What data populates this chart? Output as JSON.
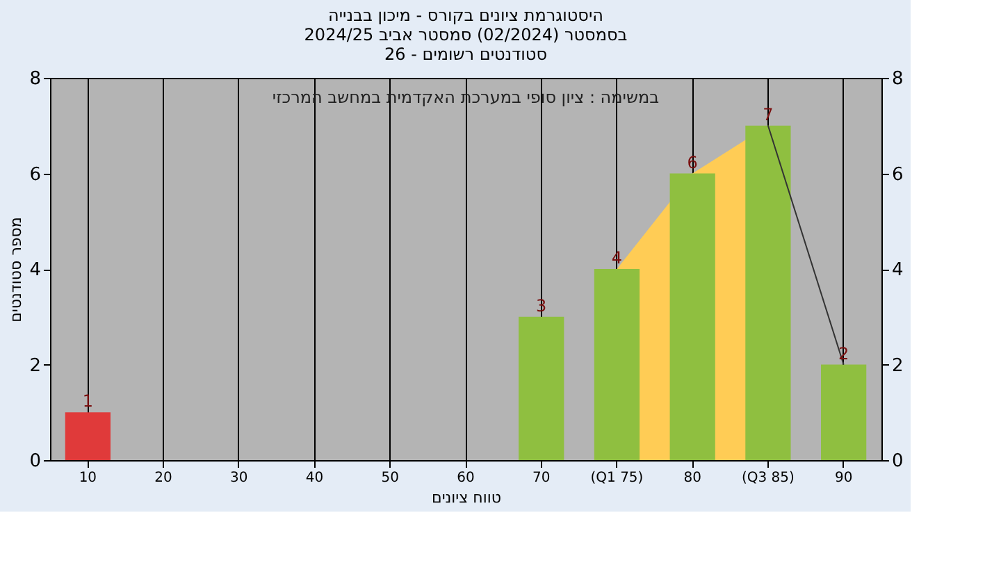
{
  "chart_data": {
    "type": "bar",
    "title": [
      "היסטוגרמת ציונים בקורס - מיכון בבנייה",
      "בסמסטר  (02/2024)  סמסטר אביב 2024/25",
      "סטודנטים רשומים - 26"
    ],
    "xlabel": "טווח ציונים",
    "ylabel": "מספר סטודנטים",
    "annotations": [
      "במשימה : ציון סופי במערכת האקדמית במחשב המרכזי"
    ],
    "categories": [
      "10",
      "20",
      "30",
      "40",
      "50",
      "60",
      "70",
      "(Q1 75)",
      "80",
      "(Q3 85)",
      "90"
    ],
    "series": [
      {
        "type": "area",
        "color": "#ffcc55",
        "values": [
          null,
          null,
          null,
          null,
          null,
          null,
          null,
          4,
          6,
          7,
          null
        ]
      },
      {
        "colors": [
          "#e03a3a",
          "#8fbf40",
          "#8fbf40",
          "#8fbf40",
          "#8fbf40",
          "#8fbf40",
          "#8fbf40",
          "#8fbf40",
          "#8fbf40",
          "#8fbf40",
          "#8fbf40"
        ],
        "values": [
          1,
          0,
          0,
          0,
          0,
          0,
          3,
          4,
          6,
          7,
          2
        ],
        "value_labels": [
          "1",
          null,
          null,
          null,
          null,
          null,
          "3",
          "4",
          "6",
          "7",
          "2"
        ]
      },
      {
        "type": "line",
        "color": "#333333",
        "values": [
          null,
          null,
          null,
          null,
          null,
          null,
          null,
          null,
          null,
          7,
          2
        ]
      }
    ],
    "ylim": [
      0,
      8
    ],
    "yticks": [
      0,
      2,
      4,
      6,
      8
    ],
    "y2lim": [
      0,
      8
    ],
    "y2ticks": [
      0,
      2,
      4,
      6,
      8
    ],
    "grid": "x"
  }
}
